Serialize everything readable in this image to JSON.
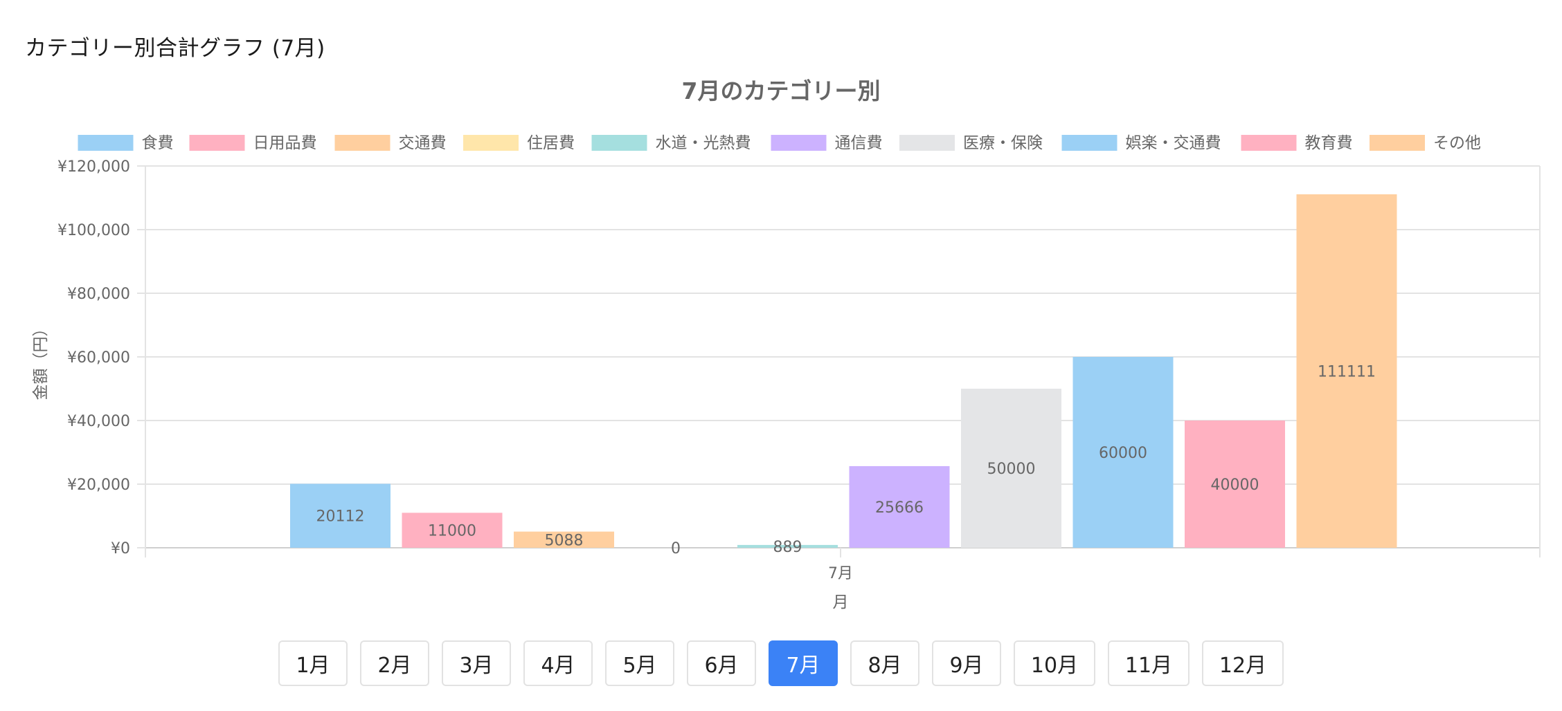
{
  "page": {
    "heading": "カテゴリー別合計グラフ (7月)"
  },
  "chart_data": {
    "type": "bar",
    "title": "7月のカテゴリー別",
    "xlabel": "月",
    "ylabel": "金額（円）",
    "categories": [
      "7月"
    ],
    "ylim": [
      0,
      120000
    ],
    "y_ticks": [
      "¥0",
      "¥20,000",
      "¥40,000",
      "¥60,000",
      "¥80,000",
      "¥100,000",
      "¥120,000"
    ],
    "grid": true,
    "legend_position": "top",
    "series": [
      {
        "name": "食費",
        "values": [
          20112
        ],
        "label": "20112",
        "color": "#9BD0F5"
      },
      {
        "name": "日用品費",
        "values": [
          11000
        ],
        "label": "11000",
        "color": "#FFB1C1"
      },
      {
        "name": "交通費",
        "values": [
          5088
        ],
        "label": "5088",
        "color": "#FFCF9F"
      },
      {
        "name": "住居費",
        "values": [
          0
        ],
        "label": "0",
        "color": "#FFE6AA"
      },
      {
        "name": "水道・光熱費",
        "values": [
          889
        ],
        "label": "889",
        "color": "#A5DFDF"
      },
      {
        "name": "通信費",
        "values": [
          25666
        ],
        "label": "25666",
        "color": "#CCB2FF"
      },
      {
        "name": "医療・保険",
        "values": [
          50000
        ],
        "label": "50000",
        "color": "#E4E5E7"
      },
      {
        "name": "娯楽・交通費",
        "values": [
          60000
        ],
        "label": "60000",
        "color": "#9BD0F5"
      },
      {
        "name": "教育費",
        "values": [
          40000
        ],
        "label": "40000",
        "color": "#FFB1C1"
      },
      {
        "name": "その他",
        "values": [
          111111
        ],
        "label": "111111",
        "color": "#FFCF9F"
      }
    ]
  },
  "month_nav": {
    "selected": "7月",
    "buttons": [
      "1月",
      "2月",
      "3月",
      "4月",
      "5月",
      "6月",
      "7月",
      "8月",
      "9月",
      "10月",
      "11月",
      "12月"
    ]
  }
}
